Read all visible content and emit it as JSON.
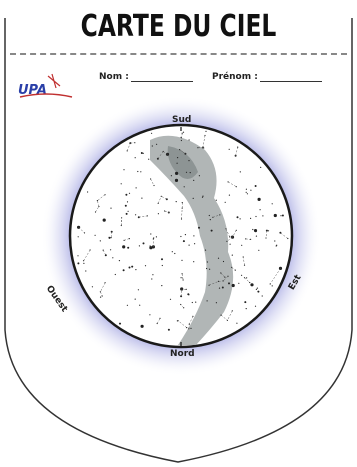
{
  "header": {
    "title": "CARTE DU CIEL",
    "nom_label": "Nom :",
    "prenom_label": "Prénom :"
  },
  "logo": {
    "text": "UPA"
  },
  "compass": {
    "south": "Sud",
    "north": "Nord",
    "west": "Ouest",
    "east": "Est"
  },
  "colors": {
    "halo": "#3a3fc0",
    "disk_border": "#1a1a1a",
    "milky_way": "#a8aeae",
    "outline": "#333333"
  }
}
